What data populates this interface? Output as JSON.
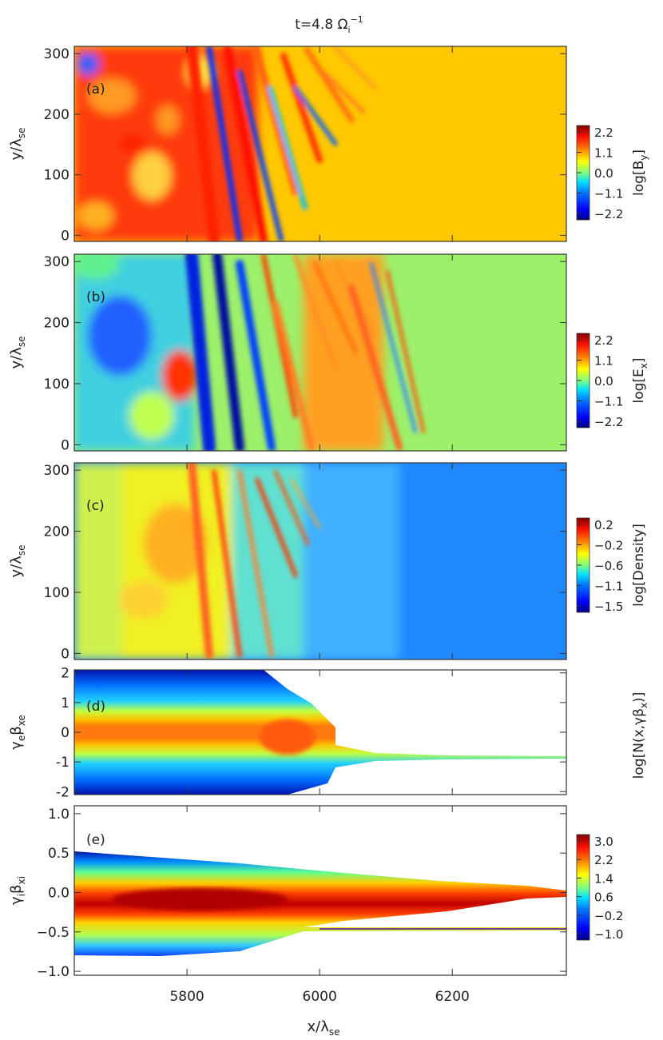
{
  "figure": {
    "title": "t=4.8 Ω",
    "title_sub": "i",
    "title_sup": "−1",
    "xlabel": "x/λ",
    "xlabel_sub": "se",
    "x_ticks": [
      5800,
      6000,
      6200
    ],
    "xlim": [
      5630,
      6372
    ]
  },
  "colors": {
    "jet": [
      "#00007f",
      "#0000ff",
      "#0080ff",
      "#00e0ff",
      "#80ff80",
      "#ffff00",
      "#ff8000",
      "#ff1000",
      "#800000"
    ]
  },
  "chart_data": [
    {
      "id": "a",
      "type": "heatmap",
      "panel_label": "(a)",
      "ylabel": "y/λ",
      "ylabel_sub": "se",
      "ylim": [
        -10,
        312
      ],
      "y_ticks": [
        0,
        100,
        200,
        300
      ],
      "colorbar": {
        "label": "log[B",
        "label_sub": "y",
        "label_end": "]",
        "ticks": [
          "2.2",
          "1.1",
          "0.0",
          "−1.1",
          "−2.2"
        ],
        "range": [
          -2.5,
          2.5
        ]
      },
      "description_values": {
        "upstream_level": 0.9,
        "shock_x_start": 5810,
        "shock_x_end": 5950
      }
    },
    {
      "id": "b",
      "type": "heatmap",
      "panel_label": "(b)",
      "ylabel": "y/λ",
      "ylabel_sub": "se",
      "ylim": [
        -10,
        312
      ],
      "y_ticks": [
        0,
        100,
        200,
        300
      ],
      "colorbar": {
        "label": "log[E",
        "label_sub": "x",
        "label_end": "]",
        "ticks": [
          "2.2",
          "1.1",
          "0.0",
          "−1.1",
          "−2.2"
        ],
        "range": [
          -2.5,
          2.5
        ]
      },
      "description_values": {
        "upstream_level": 0.2,
        "shock_x_start": 5830,
        "shock_x_end": 5940
      }
    },
    {
      "id": "c",
      "type": "heatmap",
      "panel_label": "(c)",
      "ylabel": "y/λ",
      "ylabel_sub": "se",
      "ylim": [
        -10,
        312
      ],
      "y_ticks": [
        0,
        100,
        200,
        300
      ],
      "colorbar": {
        "label": "log[Density]",
        "label_sub": "",
        "label_end": "",
        "ticks": [
          "0.2",
          "−0.2",
          "−0.6",
          "−1.1",
          "−1.5"
        ],
        "range": [
          -1.7,
          0.4
        ]
      },
      "description_values": {
        "upstream_level": -1.3,
        "downstream_level": -0.5
      }
    },
    {
      "id": "d",
      "type": "heatmap",
      "panel_label": "(d)",
      "ylabel": "γ",
      "ylabel_sub1": "e",
      "ylabel_mid": "β",
      "ylabel_sub2": "xe",
      "ylim": [
        -2.1,
        2.1
      ],
      "y_ticks": [
        -2,
        -1,
        0,
        1,
        2
      ],
      "description_values": {
        "beam_center": -0.35
      }
    },
    {
      "id": "e",
      "type": "heatmap",
      "panel_label": "(e)",
      "ylabel": "γ",
      "ylabel_sub1": "i",
      "ylabel_mid": "β",
      "ylabel_sub2": "xi",
      "ylim": [
        -1.05,
        1.1
      ],
      "y_ticks": [
        -1.0,
        -0.5,
        0.0,
        0.5,
        1.0
      ],
      "y_tick_labels": [
        "−1.0",
        "−0.5",
        "0.0",
        "0.5",
        "1.0"
      ],
      "description_values": {
        "beam_center": -0.37
      }
    },
    {
      "id": "de_colorbar",
      "type": "colorbar",
      "label": "log[N(x,γβ",
      "label_sub": "x",
      "label_end": ")]",
      "ticks": [
        "3.0",
        "2.2",
        "1.4",
        "0.6",
        "−0.2",
        "−1.0"
      ]
    }
  ]
}
